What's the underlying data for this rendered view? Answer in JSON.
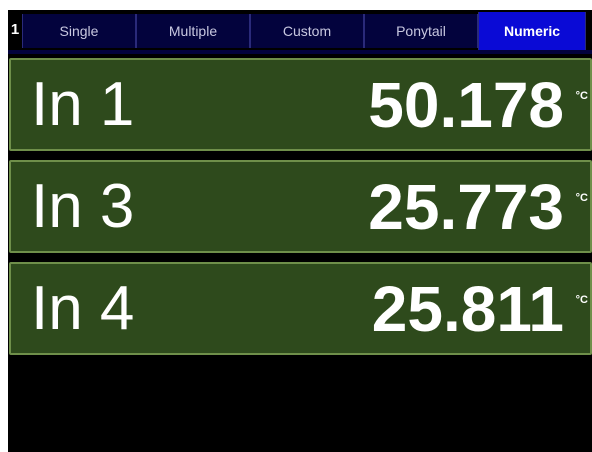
{
  "screen_number": "1",
  "tabs": [
    "Single",
    "Multiple",
    "Custom",
    "Ponytail",
    "Numeric"
  ],
  "active_tab": 4,
  "readings": [
    {
      "label": "In 1",
      "value": "50.178",
      "unit": "°C"
    },
    {
      "label": "In 3",
      "value": "25.773",
      "unit": "°C"
    },
    {
      "label": "In 4",
      "value": "25.811",
      "unit": "°C"
    }
  ]
}
